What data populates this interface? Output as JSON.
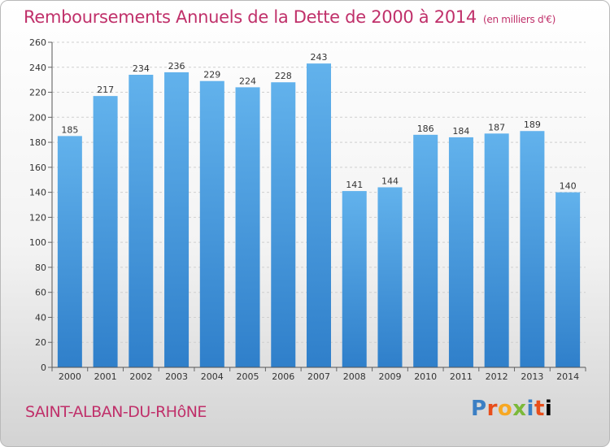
{
  "header": {
    "title": "Remboursements Annuels de la Dette de 2000 à 2014",
    "unit": "(en milliers d'€)"
  },
  "footer": {
    "city": "SAINT-ALBAN-DU-RHôNE",
    "logo": [
      "P",
      "r",
      "o",
      "x",
      "i",
      "t",
      "i"
    ]
  },
  "colors": {
    "bar": "#4f9ee0",
    "title": "#c0306a"
  },
  "chart_data": {
    "type": "bar",
    "title": "Remboursements Annuels de la Dette de 2000 à 2014",
    "categories": [
      "2000",
      "2001",
      "2002",
      "2003",
      "2004",
      "2005",
      "2006",
      "2007",
      "2008",
      "2009",
      "2010",
      "2011",
      "2012",
      "2013",
      "2014"
    ],
    "values": [
      185,
      217,
      234,
      236,
      229,
      224,
      228,
      243,
      141,
      144,
      186,
      184,
      187,
      189,
      140
    ],
    "ylim": [
      0,
      260
    ],
    "yticks": [
      0,
      20,
      40,
      60,
      80,
      100,
      120,
      140,
      160,
      180,
      200,
      220,
      240,
      260
    ],
    "grid": true,
    "xlabel": "",
    "ylabel": ""
  }
}
